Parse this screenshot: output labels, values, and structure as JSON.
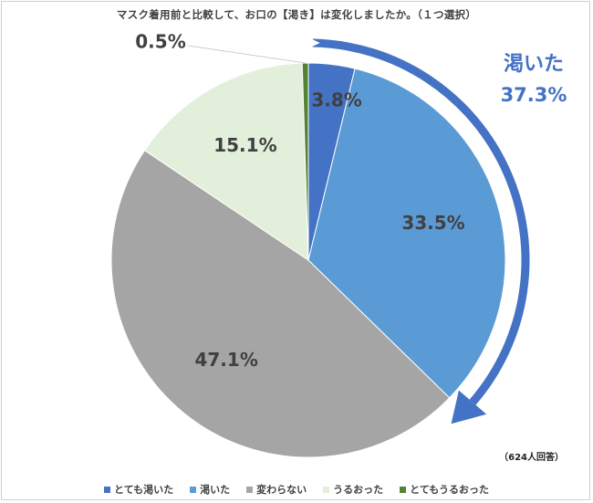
{
  "title": "マスク着用前と比較して、お口の【渇き】は変化しましたか。（１つ選択）",
  "respondents": "（624人回答）",
  "callout": {
    "label": "渇いた",
    "value": "37.3%",
    "color": "#4472c4"
  },
  "chart_data": {
    "type": "pie",
    "title": "マスク着用前と比較して、お口の【渇き】は変化しましたか。（１つ選択）",
    "categories": [
      "とても渇いた",
      "渇いた",
      "変わらない",
      "うるおった",
      "とてもうるおった"
    ],
    "values": [
      3.8,
      33.5,
      47.1,
      15.1,
      0.5
    ],
    "labels": [
      "3.8%",
      "33.5%",
      "47.1%",
      "15.1%",
      "0.5%"
    ],
    "colors": [
      "#4472c4",
      "#5b9bd5",
      "#a5a5a5",
      "#e2efda",
      "#548235"
    ],
    "start": "12 o'clock",
    "direction": "clockwise",
    "legend": "bottom"
  }
}
